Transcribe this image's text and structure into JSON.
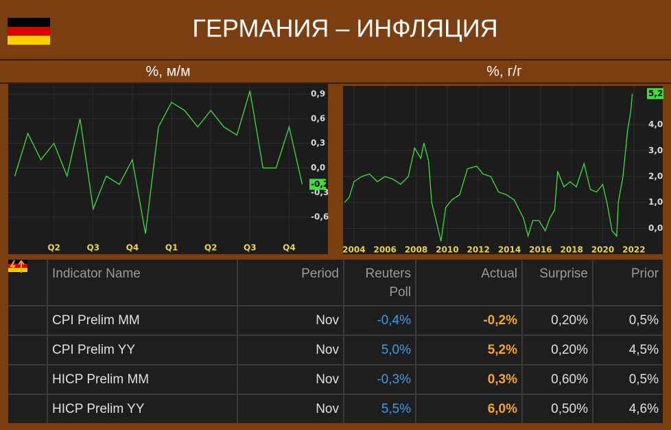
{
  "header": {
    "title": "ГЕРМАНИЯ – ИНФЛЯЦИЯ",
    "left_caption": "%, м/м",
    "right_caption": "%, г/г"
  },
  "chart_data": [
    {
      "type": "line",
      "categories": [
        null,
        null,
        null,
        "Q2",
        null,
        null,
        "Q3",
        null,
        null,
        "Q4",
        null,
        null,
        "Q1",
        null,
        null,
        "Q2",
        null,
        null,
        "Q3",
        null,
        null,
        "Q4",
        null
      ],
      "values": [
        -0.1,
        0.42,
        0.1,
        0.3,
        -0.1,
        0.6,
        -0.5,
        -0.1,
        -0.2,
        0.1,
        -0.8,
        0.5,
        0.8,
        0.7,
        0.5,
        0.7,
        0.5,
        0.4,
        0.94,
        0.0,
        0.0,
        0.5,
        -0.2
      ],
      "value_labels": [
        null,
        null,
        null,
        null,
        null,
        null,
        null,
        null,
        null,
        null,
        null,
        null,
        null,
        null,
        null,
        null,
        null,
        null,
        null,
        null,
        null,
        null,
        "-0,2"
      ],
      "color": "#3ee03e",
      "ylim": [
        -0.9,
        1.0
      ],
      "yticks": [
        {
          "value": -0.6,
          "label": "-0,6"
        },
        {
          "value": -0.3,
          "label": "-0,3"
        },
        {
          "value": 0.0,
          "label": "0,0"
        },
        {
          "value": 0.3,
          "label": "0,3"
        },
        {
          "value": 0.6,
          "label": "0,6"
        },
        {
          "value": 0.9,
          "label": "0,9"
        }
      ],
      "grid": true
    },
    {
      "type": "line",
      "x": [
        2003.4,
        2003.7,
        2004.0,
        2004.5,
        2005.0,
        2005.5,
        2006.0,
        2006.5,
        2007.0,
        2007.5,
        2007.9,
        2008.3,
        2008.5,
        2008.8,
        2009.0,
        2009.4,
        2009.6,
        2009.9,
        2010.3,
        2010.8,
        2011.3,
        2011.9,
        2012.3,
        2012.8,
        2013.3,
        2013.8,
        2014.3,
        2014.9,
        2015.2,
        2015.5,
        2015.9,
        2016.3,
        2016.6,
        2016.9,
        2017.1,
        2017.5,
        2017.9,
        2018.3,
        2018.8,
        2019.2,
        2019.6,
        2020.0,
        2020.3,
        2020.6,
        2020.9,
        2021.0,
        2021.3,
        2021.6,
        2021.8,
        2021.9
      ],
      "values": [
        1.0,
        1.2,
        1.8,
        2.0,
        2.1,
        1.8,
        2.0,
        1.9,
        1.7,
        2.0,
        3.1,
        2.7,
        3.3,
        2.6,
        1.0,
        0.0,
        -0.5,
        0.8,
        1.1,
        1.3,
        2.3,
        2.4,
        2.1,
        2.0,
        1.4,
        1.3,
        1.1,
        0.4,
        -0.3,
        0.3,
        0.3,
        -0.1,
        0.4,
        0.7,
        2.2,
        1.6,
        1.8,
        1.6,
        2.5,
        1.5,
        1.4,
        1.7,
        0.9,
        -0.1,
        -0.3,
        1.0,
        2.0,
        3.8,
        4.5,
        5.2
      ],
      "value_labels": [
        null,
        null,
        null,
        null,
        null,
        null,
        null,
        null,
        null,
        null,
        null,
        null,
        null,
        null,
        null,
        null,
        null,
        null,
        null,
        null,
        null,
        null,
        null,
        null,
        null,
        null,
        null,
        null,
        null,
        null,
        null,
        null,
        null,
        null,
        null,
        null,
        null,
        null,
        null,
        null,
        null,
        null,
        null,
        null,
        null,
        null,
        null,
        null,
        null,
        "5,2"
      ],
      "color": "#3ee03e",
      "xlim": [
        2003.3,
        2022.8
      ],
      "xticks": [
        2004,
        2006,
        2008,
        2010,
        2012,
        2014,
        2016,
        2018,
        2020,
        2022
      ],
      "ylim": [
        -0.6,
        5.5
      ],
      "yticks": [
        {
          "value": 0,
          "label": "0,0"
        },
        {
          "value": 1,
          "label": "1,0"
        },
        {
          "value": 2,
          "label": "2,0"
        },
        {
          "value": 3,
          "label": "3,0"
        },
        {
          "value": 4,
          "label": "4,0"
        }
      ],
      "grid": true
    }
  ],
  "table": {
    "columns": [
      "Indicator Name",
      "Period",
      "Reuters Poll",
      "Actual",
      "Surprise",
      "Prior"
    ],
    "rows": [
      [
        "CPI Prelim MM",
        "Nov",
        "-0,4%",
        "-0,2%",
        "0,20%",
        "0,5%"
      ],
      [
        "CPI Prelim YY",
        "Nov",
        "5,0%",
        "5,2%",
        "0,20%",
        "4,5%"
      ],
      [
        "HICP Prelim MM",
        "Nov",
        "-0,3%",
        "0,3%",
        "0,60%",
        "0,5%"
      ],
      [
        "HICP Prelim YY",
        "Nov",
        "5,5%",
        "6,0%",
        "0,50%",
        "4,6%"
      ]
    ]
  }
}
